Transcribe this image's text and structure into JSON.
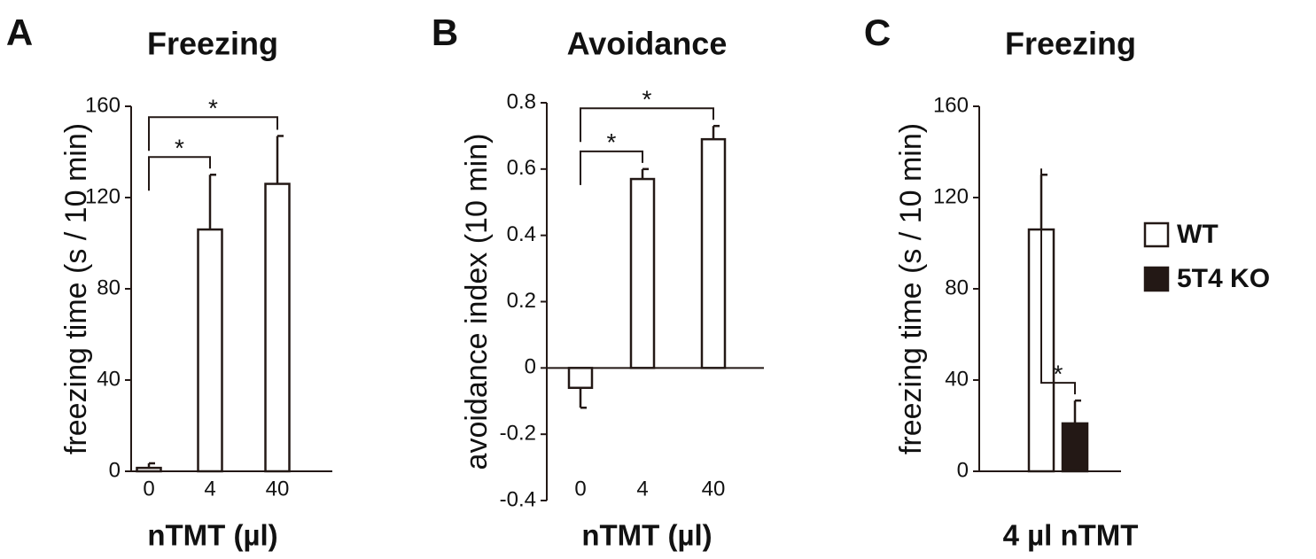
{
  "chart_data": [
    {
      "type": "bar",
      "label": "A",
      "title": "Freezing",
      "y_label": "freezing time (s / 10 min)",
      "x_label": "nTMT (µl)",
      "categories": [
        "0",
        "4",
        "40"
      ],
      "values": [
        1.5,
        106,
        126
      ],
      "errors": [
        2,
        24,
        21
      ],
      "color": "#ffffff",
      "ylim": [
        0,
        160
      ],
      "yticks": [
        0,
        40,
        80,
        120,
        160
      ],
      "annotations": [
        "*",
        "*"
      ]
    },
    {
      "type": "bar",
      "label": "B",
      "title": "Avoidance",
      "y_label": "avoidance index (10 min)",
      "x_label": "nTMT (µl)",
      "categories": [
        "0",
        "4",
        "40"
      ],
      "values": [
        -0.06,
        0.57,
        0.69
      ],
      "errors": [
        0.06,
        0.03,
        0.04
      ],
      "color": "#ffffff",
      "ylim": [
        -0.4,
        0.8
      ],
      "yticks": [
        -0.4,
        -0.2,
        0,
        0.2,
        0.4,
        0.6,
        0.8
      ],
      "annotations": [
        "*",
        "*"
      ]
    },
    {
      "type": "bar",
      "label": "C",
      "title": "Freezing",
      "y_label": "freezing time (s / 10 min)",
      "x_label": "4 µl nTMT",
      "series": [
        {
          "name": "WT",
          "color": "#ffffff",
          "values": [
            106
          ],
          "errors": [
            24
          ]
        },
        {
          "name": "5T4 KO",
          "color": "#231815",
          "values": [
            21
          ],
          "errors": [
            10
          ]
        }
      ],
      "ylim": [
        0,
        160
      ],
      "yticks": [
        0,
        40,
        80,
        120,
        160
      ],
      "annotations": [
        "*"
      ]
    }
  ]
}
